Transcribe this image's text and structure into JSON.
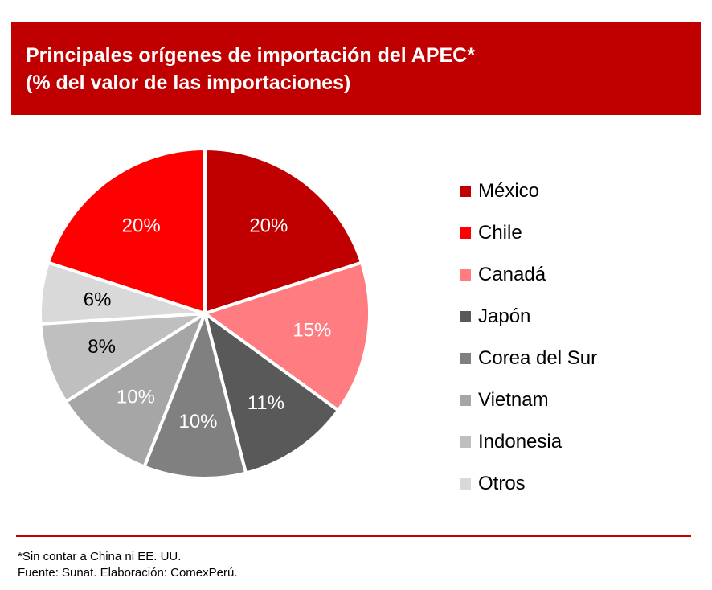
{
  "header": {
    "title": "Principales orígenes de importación del APEC*",
    "subtitle": "(% del valor de las importaciones)"
  },
  "chart_data": {
    "type": "pie",
    "title": "Principales orígenes de importación del APEC*",
    "subtitle": "(% del valor de las importaciones)",
    "legend_position": "right",
    "slices": [
      {
        "label": "México",
        "value": 20,
        "display": "20%",
        "color": "#c00000",
        "text_color": "#ffffff"
      },
      {
        "label": "Canadá",
        "value": 15,
        "display": "15%",
        "color": "#ff7c80",
        "text_color": "#ffffff"
      },
      {
        "label": "Japón",
        "value": 11,
        "display": "11%",
        "color": "#595959",
        "text_color": "#ffffff"
      },
      {
        "label": "Corea del Sur",
        "value": 10,
        "display": "10%",
        "color": "#808080",
        "text_color": "#ffffff"
      },
      {
        "label": "Vietnam",
        "value": 10,
        "display": "10%",
        "color": "#a6a6a6",
        "text_color": "#ffffff"
      },
      {
        "label": "Indonesia",
        "value": 8,
        "display": "8%",
        "color": "#bfbfbf",
        "text_color": "#000000"
      },
      {
        "label": "Otros",
        "value": 6,
        "display": "6%",
        "color": "#d9d9d9",
        "text_color": "#000000"
      },
      {
        "label": "Chile",
        "value": 20,
        "display": "20%",
        "color": "#ff0000",
        "text_color": "#ffffff"
      }
    ],
    "legend": [
      {
        "label": "México",
        "color": "#c00000"
      },
      {
        "label": "Chile",
        "color": "#ff0000"
      },
      {
        "label": "Canadá",
        "color": "#ff7c80"
      },
      {
        "label": "Japón",
        "color": "#595959"
      },
      {
        "label": "Corea del Sur",
        "color": "#808080"
      },
      {
        "label": "Vietnam",
        "color": "#a6a6a6"
      },
      {
        "label": "Indonesia",
        "color": "#bfbfbf"
      },
      {
        "label": "Otros",
        "color": "#d9d9d9"
      }
    ]
  },
  "footer": {
    "note": "*Sin contar a China ni EE. UU.",
    "source": "Fuente: Sunat. Elaboración: ComexPerú."
  },
  "colors": {
    "accent": "#c00000"
  }
}
